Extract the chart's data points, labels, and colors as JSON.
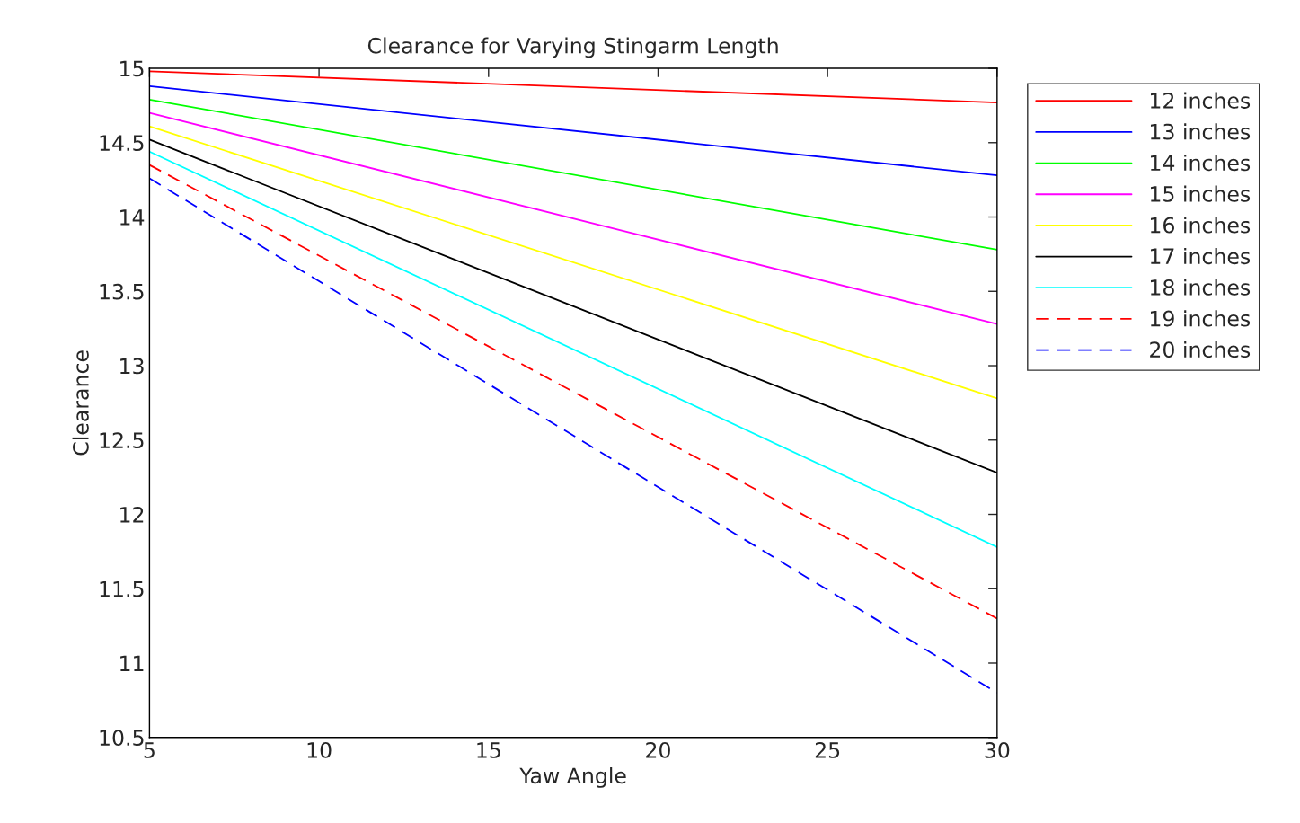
{
  "chart_data": {
    "type": "line",
    "title": "Clearance for Varying Stingarm Length",
    "xlabel": "Yaw Angle",
    "ylabel": "Clearance",
    "x": [
      5,
      30
    ],
    "series": [
      {
        "name": "12 inches",
        "color": "#ff0000",
        "line_style": "solid",
        "values": [
          14.98,
          14.77
        ]
      },
      {
        "name": "13 inches",
        "color": "#0000ff",
        "line_style": "solid",
        "values": [
          14.88,
          14.28
        ]
      },
      {
        "name": "14 inches",
        "color": "#00ff00",
        "line_style": "solid",
        "values": [
          14.79,
          13.78
        ]
      },
      {
        "name": "15 inches",
        "color": "#ff00ff",
        "line_style": "solid",
        "values": [
          14.7,
          13.28
        ]
      },
      {
        "name": "16 inches",
        "color": "#ffff00",
        "line_style": "solid",
        "values": [
          14.61,
          12.78
        ]
      },
      {
        "name": "17 inches",
        "color": "#000000",
        "line_style": "solid",
        "values": [
          14.52,
          12.28
        ]
      },
      {
        "name": "18 inches",
        "color": "#00ffff",
        "line_style": "solid",
        "values": [
          14.44,
          11.78
        ]
      },
      {
        "name": "19 inches",
        "color": "#ff0000",
        "line_style": "dashed",
        "values": [
          14.35,
          11.3
        ]
      },
      {
        "name": "20 inches",
        "color": "#0000ff",
        "line_style": "dashed",
        "values": [
          14.26,
          10.8
        ]
      }
    ],
    "xlim": [
      5,
      30
    ],
    "xticks": [
      5,
      10,
      15,
      20,
      25,
      30
    ],
    "ylim": [
      10.5,
      15
    ],
    "yticks": [
      10.5,
      11,
      11.5,
      12,
      12.5,
      13,
      13.5,
      14,
      14.5,
      15
    ],
    "grid": false,
    "legend": "top right",
    "marker": "none"
  }
}
